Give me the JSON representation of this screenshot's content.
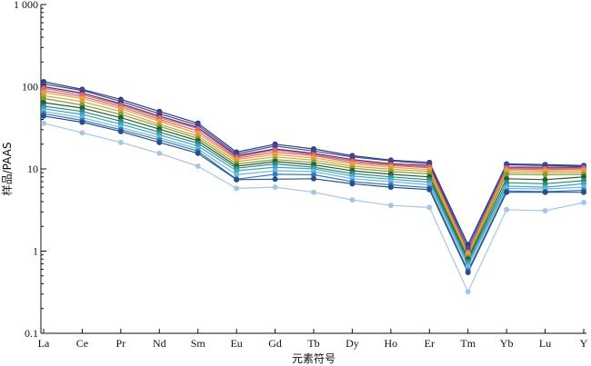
{
  "chart_data": {
    "type": "line",
    "title": "",
    "xlabel": "元素符号",
    "ylabel": "样品/PAAS",
    "y_scale": "log",
    "ylim": [
      0.1,
      1000
    ],
    "y_ticks": [
      {
        "value": 0.1,
        "label": "0.1"
      },
      {
        "value": 1,
        "label": "1"
      },
      {
        "value": 10,
        "label": "10"
      },
      {
        "value": 100,
        "label": "100"
      },
      {
        "value": 1000,
        "label": "1 000"
      }
    ],
    "categories": [
      "La",
      "Ce",
      "Pr",
      "Nd",
      "Sm",
      "Eu",
      "Gd",
      "Tb",
      "Dy",
      "Ho",
      "Er",
      "Tm",
      "Yb",
      "Lu",
      "Y"
    ],
    "grid": false,
    "legend": "none",
    "series": [
      {
        "color": "#2f3c86",
        "values": [
          115,
          93,
          70,
          50,
          36,
          16,
          20,
          17.5,
          14.5,
          12.8,
          12,
          1.2,
          11.5,
          11.3,
          11
        ]
      },
      {
        "color": "#3d4c96",
        "values": [
          108,
          90,
          66,
          47,
          34,
          15.2,
          19,
          16.5,
          14,
          12.5,
          11.5,
          1.1,
          11.2,
          11,
          10.8
        ]
      },
      {
        "color": "#7b2430",
        "values": [
          100,
          84,
          62,
          44,
          32,
          14.5,
          17.5,
          15.5,
          13,
          11.6,
          11,
          1.0,
          10.5,
          10.5,
          10.5
        ]
      },
      {
        "color": "#a76eb5",
        "values": [
          96,
          80,
          60,
          42,
          31,
          14,
          17,
          15,
          12.5,
          11.2,
          10.6,
          0.98,
          10.3,
          10.1,
          10.3
        ]
      },
      {
        "color": "#e4685a",
        "values": [
          90,
          76,
          57,
          40,
          29,
          13.5,
          16,
          14.5,
          12,
          11,
          10.3,
          0.95,
          10,
          9.8,
          10
        ]
      },
      {
        "color": "#f0a040",
        "values": [
          85,
          72,
          54,
          38,
          27,
          13,
          15,
          13.6,
          11.5,
          10.5,
          9.8,
          0.92,
          9.6,
          9.4,
          9.6
        ]
      },
      {
        "color": "#cda53d",
        "values": [
          78,
          66,
          50,
          35,
          25,
          12.3,
          14,
          12.8,
          10.8,
          9.9,
          9.3,
          0.88,
          9.1,
          9,
          9.1
        ]
      },
      {
        "color": "#7d9e3a",
        "values": [
          72,
          60,
          46,
          33,
          23.5,
          11.5,
          13,
          12,
          10.2,
          9.3,
          8.7,
          0.84,
          8.6,
          8.5,
          8.6
        ]
      },
      {
        "color": "#2e5b2e",
        "values": [
          64,
          55,
          42,
          30.5,
          22,
          10.8,
          12.3,
          11.2,
          9.5,
          8.6,
          8,
          0.8,
          7.6,
          7.4,
          8
        ]
      },
      {
        "color": "#2b8a80",
        "values": [
          58,
          50,
          38,
          28,
          20.5,
          10.2,
          11.5,
          10.5,
          8.8,
          8,
          7.4,
          0.75,
          6.8,
          6.6,
          7.2
        ]
      },
      {
        "color": "#3ca6c6",
        "values": [
          54,
          46,
          35,
          26,
          19,
          9.5,
          10.5,
          10,
          8.2,
          7.5,
          6.9,
          0.7,
          6.2,
          6,
          6.6
        ]
      },
      {
        "color": "#6fb8d8",
        "values": [
          50,
          42,
          32,
          24,
          17.5,
          8.5,
          9.5,
          9.3,
          7.6,
          7,
          6.4,
          0.65,
          5.8,
          5.7,
          6
        ]
      },
      {
        "color": "#3a78c0",
        "values": [
          47,
          39,
          30,
          22.5,
          16.5,
          7.5,
          8.6,
          8.5,
          7,
          6.4,
          5.9,
          0.58,
          5.4,
          5.3,
          5.5
        ]
      },
      {
        "color": "#25508a",
        "values": [
          44,
          37,
          28.5,
          21,
          15.5,
          7.4,
          7.5,
          7.6,
          6.6,
          6,
          5.6,
          0.55,
          5.2,
          5.2,
          5.2
        ]
      },
      {
        "color": "#a8c6e4",
        "values": [
          36,
          27.5,
          21,
          15.5,
          10.8,
          5.8,
          6,
          5.2,
          4.2,
          3.6,
          3.4,
          0.32,
          3.2,
          3.1,
          3.9
        ]
      }
    ]
  }
}
